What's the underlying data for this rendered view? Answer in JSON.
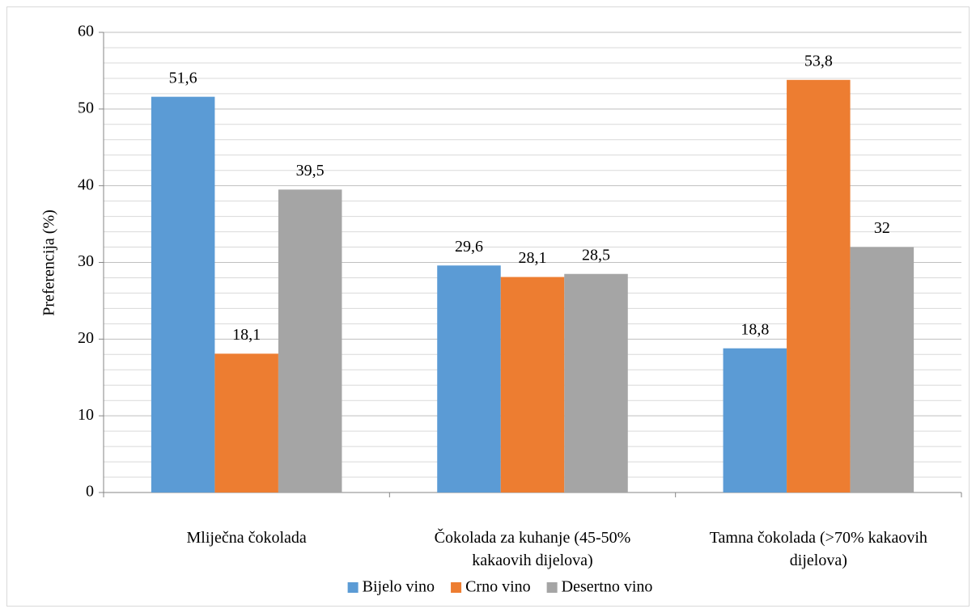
{
  "chart_data": {
    "type": "bar",
    "y_label": "Preferencija (%)",
    "categories": [
      "Mliječna čokolada",
      "Čokolada za kuhanje (45-50% kakaovih dijelova)",
      "Tamna čokolada (>70% kakaovih dijelova)"
    ],
    "series": [
      {
        "name": "Bijelo vino",
        "color": "#5b9bd5",
        "values": [
          51.6,
          29.6,
          18.8
        ],
        "value_labels": [
          "51,6",
          "29,6",
          "18,8"
        ]
      },
      {
        "name": "Crno vino",
        "color": "#ed7d31",
        "values": [
          18.1,
          28.1,
          53.8
        ],
        "value_labels": [
          "18,1",
          "28,1",
          "53,8"
        ]
      },
      {
        "name": "Desertno vino",
        "color": "#a5a5a5",
        "values": [
          39.5,
          28.5,
          32
        ],
        "value_labels": [
          "39,5",
          "28,5",
          "32"
        ]
      }
    ],
    "ylim": [
      0,
      60
    ],
    "yticks": [
      0,
      10,
      20,
      30,
      40,
      50,
      60
    ],
    "minor_yticks": [
      2,
      4,
      6,
      8,
      12,
      14,
      16,
      18,
      22,
      24,
      26,
      28,
      32,
      34,
      36,
      38,
      42,
      44,
      46,
      48,
      52,
      54,
      56,
      58
    ],
    "grid": true,
    "legend": "bottom"
  }
}
